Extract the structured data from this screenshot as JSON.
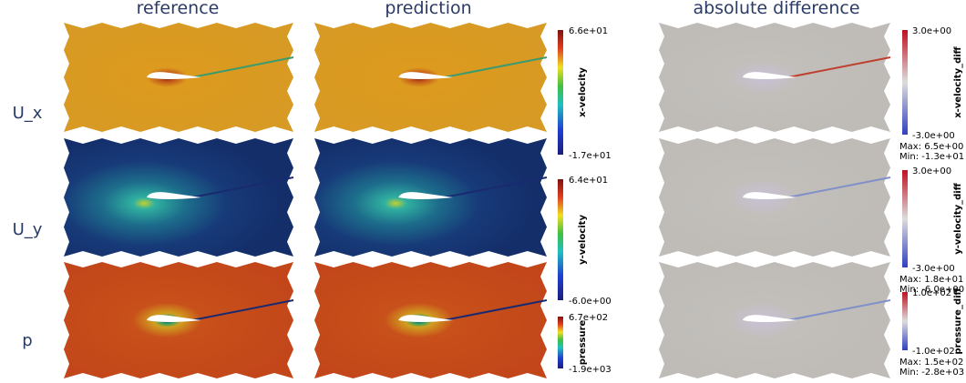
{
  "columns": [
    "reference",
    "prediction",
    "absolute difference"
  ],
  "rows": [
    {
      "label": "U_x",
      "colorbar": {
        "title": "x-velocity",
        "max": "6.6e+01",
        "min": "-1.7e+01"
      },
      "diff_colorbar": {
        "title": "x-velocity_diff",
        "max": "3.0e+00",
        "min": "-3.0e+00"
      },
      "stats": [
        "Max: 6.5e+00",
        "Min: -1.3e+01"
      ]
    },
    {
      "label": "U_y",
      "colorbar": {
        "title": "y-velocity",
        "max": "6.4e+01",
        "min": "-6.0e+00"
      },
      "diff_colorbar": {
        "title": "y-velocity_diff",
        "max": "3.0e+00",
        "min": "-3.0e+00"
      },
      "stats": [
        "Max: 1.8e+01",
        "Min: -6.0e+00"
      ]
    },
    {
      "label": "p",
      "colorbar": {
        "title": "pressure",
        "max": "6.7e+02",
        "min": "-1.9e+03"
      },
      "diff_colorbar": {
        "title": "pressure_diff",
        "max": "1.0e+02",
        "min": "-1.0e+02"
      },
      "stats": [
        "Max: 1.5e+02",
        "Min: -2.8e+03"
      ]
    }
  ]
}
